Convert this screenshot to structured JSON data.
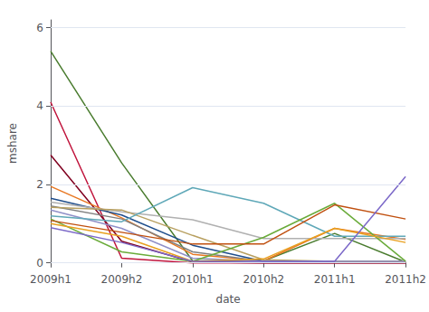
{
  "chart_data": {
    "type": "line",
    "xlabel": "date",
    "ylabel": "mshare",
    "categories": [
      "2009h1",
      "2009h2",
      "2010h1",
      "2010h2",
      "2011h1",
      "2011h2"
    ],
    "ylim": [
      -0.1,
      6.2
    ],
    "yticks": [
      0,
      2,
      4,
      6
    ],
    "grid": true,
    "series": [
      {
        "color": "#4a7c2f",
        "values": [
          5.4,
          2.55,
          0.05,
          0.05,
          0.75,
          0.02
        ]
      },
      {
        "color": "#c0143c",
        "values": [
          4.1,
          0.12,
          0.0,
          0.0,
          0.0,
          0.0
        ]
      },
      {
        "color": "#800020",
        "values": [
          2.75,
          0.55,
          0.02,
          0.0,
          0.0,
          0.0
        ]
      },
      {
        "color": "#e87722",
        "values": [
          1.95,
          1.15,
          0.22,
          0.05,
          0.88,
          0.6
        ]
      },
      {
        "color": "#1f4e8c",
        "values": [
          1.65,
          1.22,
          0.45,
          0.04,
          0.04,
          0.04
        ]
      },
      {
        "color": "#b0b0b0",
        "values": [
          1.55,
          1.3,
          1.1,
          0.62,
          0.62,
          0.62
        ]
      },
      {
        "color": "#808080",
        "values": [
          1.45,
          1.12,
          0.28,
          0.04,
          0.04,
          0.04
        ]
      },
      {
        "color": "#b8a060",
        "values": [
          1.42,
          1.35,
          0.7,
          0.08,
          0.04,
          0.04
        ]
      },
      {
        "color": "#9090c8",
        "values": [
          1.35,
          0.88,
          0.12,
          0.04,
          0.04,
          0.04
        ]
      },
      {
        "color": "#5fa8b8",
        "values": [
          1.2,
          1.05,
          1.92,
          1.52,
          0.68,
          0.68
        ]
      },
      {
        "color": "#6aab3a",
        "values": [
          1.12,
          0.28,
          0.04,
          0.65,
          1.52,
          0.04
        ]
      },
      {
        "color": "#c05010",
        "values": [
          1.08,
          0.78,
          0.48,
          0.48,
          1.48,
          1.12
        ]
      },
      {
        "color": "#e8a020",
        "values": [
          1.0,
          0.68,
          0.04,
          0.1,
          0.88,
          0.52
        ]
      },
      {
        "color": "#7b68c8",
        "values": [
          0.9,
          0.52,
          0.04,
          0.04,
          0.04,
          2.2
        ]
      }
    ]
  }
}
